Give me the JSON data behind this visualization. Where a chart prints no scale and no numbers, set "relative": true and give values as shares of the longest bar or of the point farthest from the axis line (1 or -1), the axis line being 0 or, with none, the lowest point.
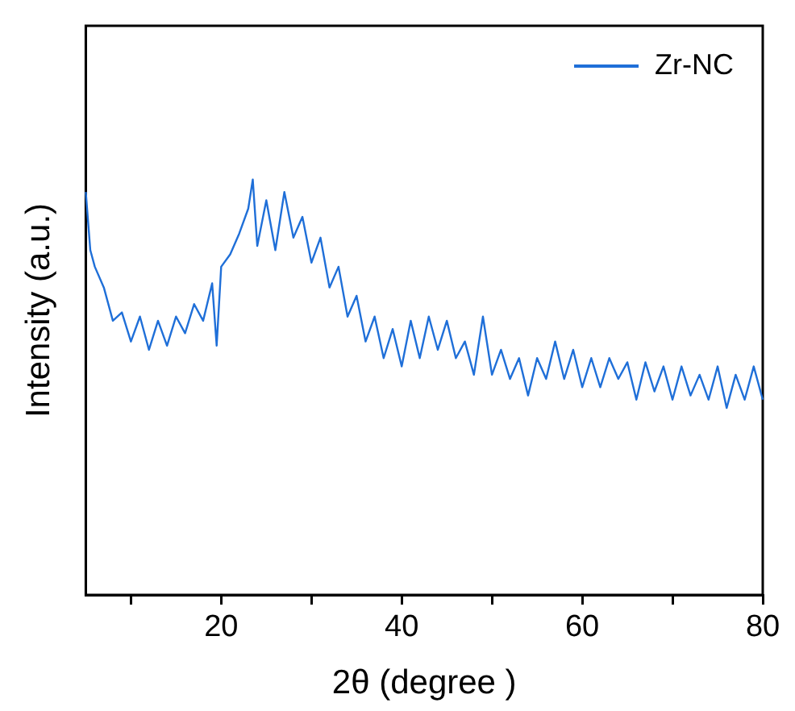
{
  "chart_data": {
    "type": "line",
    "relative": true,
    "xlabel": "2θ (degree )",
    "ylabel": "Intensity (a.u.)",
    "x": [
      5,
      5.5,
      6,
      7,
      8,
      9,
      10,
      11,
      12,
      13,
      14,
      15,
      16,
      17,
      18,
      19,
      19.5,
      20,
      21,
      22,
      23,
      23.5,
      24,
      25,
      26,
      27,
      28,
      29,
      30,
      31,
      32,
      33,
      34,
      35,
      36,
      37,
      38,
      39,
      40,
      41,
      42,
      43,
      44,
      45,
      46,
      47,
      48,
      49,
      50,
      51,
      52,
      53,
      54,
      55,
      56,
      57,
      58,
      59,
      60,
      61,
      62,
      63,
      64,
      65,
      66,
      67,
      68,
      69,
      70,
      71,
      72,
      73,
      74,
      75,
      76,
      77,
      78,
      79,
      80
    ],
    "series": [
      {
        "name": "Zr-NC",
        "color": "#1f6fd8",
        "values": [
          0.97,
          0.83,
          0.79,
          0.74,
          0.66,
          0.68,
          0.61,
          0.67,
          0.59,
          0.66,
          0.6,
          0.67,
          0.63,
          0.7,
          0.66,
          0.75,
          0.6,
          0.79,
          0.82,
          0.87,
          0.93,
          1.0,
          0.84,
          0.95,
          0.83,
          0.97,
          0.86,
          0.91,
          0.8,
          0.86,
          0.74,
          0.79,
          0.67,
          0.72,
          0.61,
          0.67,
          0.57,
          0.64,
          0.55,
          0.66,
          0.57,
          0.67,
          0.59,
          0.66,
          0.57,
          0.61,
          0.53,
          0.67,
          0.53,
          0.59,
          0.52,
          0.57,
          0.48,
          0.57,
          0.52,
          0.61,
          0.52,
          0.59,
          0.5,
          0.57,
          0.5,
          0.57,
          0.52,
          0.56,
          0.47,
          0.56,
          0.49,
          0.55,
          0.47,
          0.55,
          0.48,
          0.53,
          0.47,
          0.55,
          0.45,
          0.53,
          0.47,
          0.55,
          0.47
        ]
      }
    ],
    "xlim": [
      5,
      80
    ],
    "xticks": [
      {
        "value": 10,
        "label": null
      },
      20,
      {
        "value": 30,
        "label": null
      },
      40,
      {
        "value": 50,
        "label": null
      },
      60,
      {
        "value": 70,
        "label": null
      },
      80
    ],
    "tick_labels": "x",
    "grid": false,
    "legend": "top right",
    "marker": "none",
    "line_style": "solid"
  }
}
